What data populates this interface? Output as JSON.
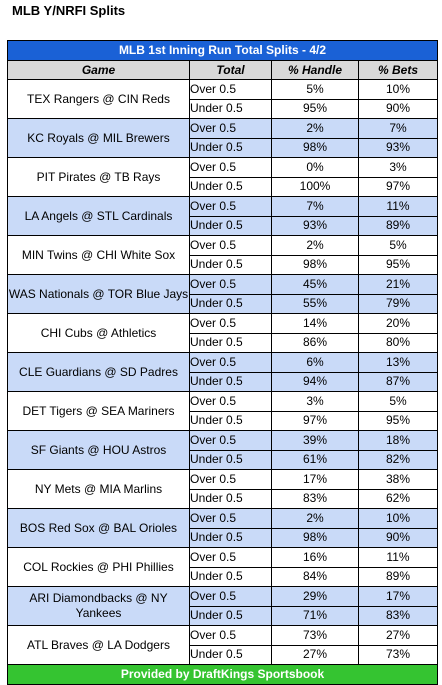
{
  "page_title": "MLB Y/NRFI Splits",
  "table": {
    "banner": "MLB 1st Inning Run Total Splits - 4/2",
    "headers": [
      "Game",
      "Total",
      "% Handle",
      "% Bets"
    ],
    "rows": [
      {
        "game": "TEX Rangers @ CIN Reds",
        "over": {
          "label": "Over 0.5",
          "handle": "5%",
          "bets": "10%"
        },
        "under": {
          "label": "Under 0.5",
          "handle": "95%",
          "bets": "90%"
        }
      },
      {
        "game": "KC Royals @ MIL Brewers",
        "over": {
          "label": "Over 0.5",
          "handle": "2%",
          "bets": "7%"
        },
        "under": {
          "label": "Under 0.5",
          "handle": "98%",
          "bets": "93%"
        }
      },
      {
        "game": "PIT Pirates @ TB Rays",
        "over": {
          "label": "Over 0.5",
          "handle": "0%",
          "bets": "3%"
        },
        "under": {
          "label": "Under 0.5",
          "handle": "100%",
          "bets": "97%"
        }
      },
      {
        "game": "LA Angels @ STL Cardinals",
        "over": {
          "label": "Over 0.5",
          "handle": "7%",
          "bets": "11%"
        },
        "under": {
          "label": "Under 0.5",
          "handle": "93%",
          "bets": "89%"
        }
      },
      {
        "game": "MIN Twins @ CHI White Sox",
        "over": {
          "label": "Over 0.5",
          "handle": "2%",
          "bets": "5%"
        },
        "under": {
          "label": "Under 0.5",
          "handle": "98%",
          "bets": "95%"
        }
      },
      {
        "game": "WAS Nationals @ TOR Blue Jays",
        "over": {
          "label": "Over 0.5",
          "handle": "45%",
          "bets": "21%"
        },
        "under": {
          "label": "Under 0.5",
          "handle": "55%",
          "bets": "79%"
        }
      },
      {
        "game": "CHI Cubs @ Athletics",
        "over": {
          "label": "Over 0.5",
          "handle": "14%",
          "bets": "20%"
        },
        "under": {
          "label": "Under 0.5",
          "handle": "86%",
          "bets": "80%"
        }
      },
      {
        "game": "CLE Guardians @ SD Padres",
        "over": {
          "label": "Over 0.5",
          "handle": "6%",
          "bets": "13%"
        },
        "under": {
          "label": "Under 0.5",
          "handle": "94%",
          "bets": "87%"
        }
      },
      {
        "game": "DET Tigers @ SEA Mariners",
        "over": {
          "label": "Over 0.5",
          "handle": "3%",
          "bets": "5%"
        },
        "under": {
          "label": "Under 0.5",
          "handle": "97%",
          "bets": "95%"
        }
      },
      {
        "game": "SF Giants @ HOU Astros",
        "over": {
          "label": "Over 0.5",
          "handle": "39%",
          "bets": "18%"
        },
        "under": {
          "label": "Under 0.5",
          "handle": "61%",
          "bets": "82%"
        }
      },
      {
        "game": "NY Mets @ MIA Marlins",
        "over": {
          "label": "Over 0.5",
          "handle": "17%",
          "bets": "38%"
        },
        "under": {
          "label": "Under 0.5",
          "handle": "83%",
          "bets": "62%"
        }
      },
      {
        "game": "BOS Red Sox @ BAL Orioles",
        "over": {
          "label": "Over 0.5",
          "handle": "2%",
          "bets": "10%"
        },
        "under": {
          "label": "Under 0.5",
          "handle": "98%",
          "bets": "90%"
        }
      },
      {
        "game": "COL Rockies @ PHI Phillies",
        "over": {
          "label": "Over 0.5",
          "handle": "16%",
          "bets": "11%"
        },
        "under": {
          "label": "Under 0.5",
          "handle": "84%",
          "bets": "89%"
        }
      },
      {
        "game": "ARI Diamondbacks @ NY Yankees",
        "over": {
          "label": "Over 0.5",
          "handle": "29%",
          "bets": "17%"
        },
        "under": {
          "label": "Under 0.5",
          "handle": "71%",
          "bets": "83%"
        }
      },
      {
        "game": "ATL Braves @ LA Dodgers",
        "over": {
          "label": "Over 0.5",
          "handle": "73%",
          "bets": "27%"
        },
        "under": {
          "label": "Under 0.5",
          "handle": "27%",
          "bets": "73%"
        }
      }
    ],
    "footer": "Provided by DraftKings Sportsbook"
  },
  "colors": {
    "banner": "#1a61d6",
    "header": "#d9d9d9",
    "shaded_row": "#c9daf8",
    "footer": "#35c431"
  }
}
